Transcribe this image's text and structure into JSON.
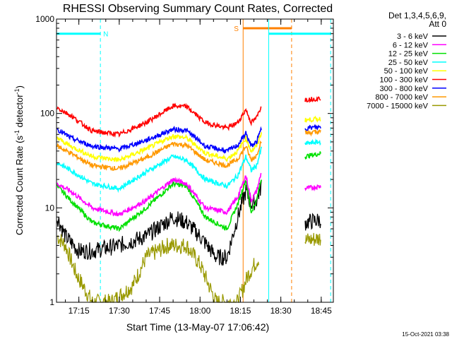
{
  "chart_data": {
    "type": "line",
    "title": "RHESSI Observing Summary Count Rates, Corrected",
    "ylabel_prefix": "Corrected Count Rate (s",
    "ylabel_sup": "-1",
    "ylabel_mid": " detector",
    "ylabel_sup2": "-1",
    "ylabel_suffix": ")",
    "xlabel": "Start Time (13-May-07 17:06:42)",
    "footer": "15-Oct-2021 03:38",
    "y_scale": "log",
    "ylim": [
      1,
      1000
    ],
    "xlim": [
      "17:06:42",
      "18:49:30"
    ],
    "y_ticks": [
      "1",
      "10",
      "100",
      "1000"
    ],
    "x_ticks": [
      "17:15",
      "17:30",
      "17:45",
      "18:00",
      "18:15",
      "18:30",
      "18:45"
    ],
    "legend": {
      "header1": "Det 1,3,4,5,6,9,",
      "header2": "Att 0",
      "placement": "right"
    },
    "series": [
      {
        "name": "3 - 6 keV",
        "color": "#000000",
        "points": [
          [
            "17:07",
            8
          ],
          [
            "17:10",
            5
          ],
          [
            "17:15",
            3.5
          ],
          [
            "17:20",
            3.5
          ],
          [
            "17:30",
            4
          ],
          [
            "17:40",
            5
          ],
          [
            "17:50",
            8
          ],
          [
            "17:55",
            7
          ],
          [
            "18:00",
            5
          ],
          [
            "18:06",
            3
          ],
          [
            "18:10",
            3
          ],
          [
            "18:14",
            8
          ],
          [
            "18:17",
            15
          ],
          [
            "18:19",
            11
          ],
          [
            "18:21",
            12
          ],
          [
            "18:23",
            18
          ]
        ],
        "points2": [
          [
            "18:39",
            7
          ],
          [
            "18:45",
            7.5
          ]
        ]
      },
      {
        "name": "6 - 12 keV",
        "color": "#ff00ff",
        "points": [
          [
            "17:07",
            18
          ],
          [
            "17:12",
            15
          ],
          [
            "17:20",
            10
          ],
          [
            "17:30",
            8.5
          ],
          [
            "17:40",
            12
          ],
          [
            "17:50",
            20
          ],
          [
            "17:55",
            18
          ],
          [
            "18:02",
            10
          ],
          [
            "18:10",
            9
          ],
          [
            "18:14",
            13
          ],
          [
            "18:17",
            22
          ],
          [
            "18:19",
            12
          ],
          [
            "18:21",
            15
          ],
          [
            "18:23",
            25
          ]
        ],
        "points2": [
          [
            "18:39",
            16
          ],
          [
            "18:45",
            17
          ]
        ]
      },
      {
        "name": "12 - 25 keV",
        "color": "#00e000",
        "points": [
          [
            "17:07",
            17
          ],
          [
            "17:12",
            12
          ],
          [
            "17:20",
            7
          ],
          [
            "17:30",
            6
          ],
          [
            "17:40",
            10
          ],
          [
            "17:50",
            18
          ],
          [
            "17:55",
            17
          ],
          [
            "18:02",
            8
          ],
          [
            "18:10",
            6
          ],
          [
            "18:14",
            11
          ],
          [
            "18:17",
            20
          ],
          [
            "18:19",
            9
          ],
          [
            "18:21",
            12
          ],
          [
            "18:23",
            22
          ]
        ],
        "points2": [
          [
            "18:39",
            35
          ],
          [
            "18:45",
            38
          ]
        ]
      },
      {
        "name": "25 - 50 keV",
        "color": "#00ffff",
        "points": [
          [
            "17:07",
            30
          ],
          [
            "17:12",
            25
          ],
          [
            "17:20",
            18
          ],
          [
            "17:30",
            16
          ],
          [
            "17:40",
            24
          ],
          [
            "17:50",
            35
          ],
          [
            "17:55",
            32
          ],
          [
            "18:02",
            20
          ],
          [
            "18:10",
            17
          ],
          [
            "18:14",
            22
          ],
          [
            "18:17",
            35
          ],
          [
            "18:19",
            25
          ],
          [
            "18:21",
            28
          ],
          [
            "18:23",
            45
          ]
        ],
        "points2": [
          [
            "18:39",
            48
          ],
          [
            "18:45",
            50
          ]
        ]
      },
      {
        "name": "50 - 100 keV",
        "color": "#ffff00",
        "points": [
          [
            "17:07",
            55
          ],
          [
            "17:12",
            45
          ],
          [
            "17:20",
            35
          ],
          [
            "17:30",
            32
          ],
          [
            "17:40",
            42
          ],
          [
            "17:50",
            58
          ],
          [
            "17:55",
            55
          ],
          [
            "18:02",
            38
          ],
          [
            "18:10",
            33
          ],
          [
            "18:14",
            40
          ],
          [
            "18:17",
            55
          ],
          [
            "18:19",
            40
          ],
          [
            "18:21",
            45
          ],
          [
            "18:23",
            65
          ]
        ],
        "points2": [
          [
            "18:39",
            85
          ],
          [
            "18:45",
            88
          ]
        ]
      },
      {
        "name": "100 - 300 keV",
        "color": "#ff0000",
        "points": [
          [
            "17:07",
            115
          ],
          [
            "17:12",
            95
          ],
          [
            "17:20",
            65
          ],
          [
            "17:30",
            60
          ],
          [
            "17:40",
            80
          ],
          [
            "17:50",
            120
          ],
          [
            "17:55",
            118
          ],
          [
            "18:02",
            80
          ],
          [
            "18:10",
            70
          ],
          [
            "18:14",
            80
          ],
          [
            "18:17",
            110
          ],
          [
            "18:19",
            80
          ],
          [
            "18:21",
            90
          ],
          [
            "18:23",
            125
          ]
        ],
        "points2": [
          [
            "18:39",
            140
          ],
          [
            "18:45",
            145
          ]
        ]
      },
      {
        "name": "300 - 800 keV",
        "color": "#0000ff",
        "points": [
          [
            "17:07",
            68
          ],
          [
            "17:12",
            55
          ],
          [
            "17:20",
            45
          ],
          [
            "17:30",
            42
          ],
          [
            "17:40",
            52
          ],
          [
            "17:50",
            68
          ],
          [
            "17:55",
            66
          ],
          [
            "18:02",
            45
          ],
          [
            "18:10",
            40
          ],
          [
            "18:14",
            46
          ],
          [
            "18:17",
            62
          ],
          [
            "18:19",
            45
          ],
          [
            "18:21",
            50
          ],
          [
            "18:23",
            72
          ]
        ],
        "points2": [
          [
            "18:39",
            70
          ],
          [
            "18:45",
            72
          ]
        ]
      },
      {
        "name": "800 - 7000 keV",
        "color": "#ff9900",
        "points": [
          [
            "17:07",
            45
          ],
          [
            "17:12",
            38
          ],
          [
            "17:20",
            28
          ],
          [
            "17:30",
            26
          ],
          [
            "17:40",
            34
          ],
          [
            "17:50",
            48
          ],
          [
            "17:55",
            46
          ],
          [
            "18:02",
            32
          ],
          [
            "18:10",
            28
          ],
          [
            "18:14",
            33
          ],
          [
            "18:17",
            45
          ],
          [
            "18:19",
            32
          ],
          [
            "18:21",
            36
          ],
          [
            "18:23",
            55
          ]
        ],
        "points2": [
          [
            "18:39",
            62
          ],
          [
            "18:45",
            64
          ]
        ]
      },
      {
        "name": "7000 - 15000 keV",
        "color": "#999900",
        "points": [
          [
            "17:07",
            5
          ],
          [
            "17:10",
            4
          ],
          [
            "17:14",
            2
          ],
          [
            "17:20",
            1
          ],
          [
            "17:27",
            1
          ],
          [
            "17:35",
            1.5
          ],
          [
            "17:40",
            3
          ],
          [
            "17:48",
            4
          ],
          [
            "17:55",
            4
          ],
          [
            "18:00",
            2.5
          ],
          [
            "18:06",
            1
          ],
          [
            "18:14",
            1
          ],
          [
            "18:18",
            2
          ],
          [
            "18:22",
            3
          ]
        ],
        "points2": [
          [
            "18:39",
            4.5
          ],
          [
            "18:45",
            4.8
          ]
        ]
      }
    ],
    "markers": [
      {
        "label": "N",
        "color": "#00ffff",
        "bar_start": "17:06:42",
        "bar_end": "17:23:00",
        "bar_y": 700,
        "lines_solid": [
          "17:06:42"
        ],
        "lines_dashed": [
          "17:23:00"
        ]
      },
      {
        "label": "S",
        "color": "#ff8000",
        "bar_start": "18:16:00",
        "bar_end": "18:34:00",
        "bar_y": 800,
        "lines_solid": [
          "18:16:00"
        ],
        "lines_dashed": [
          "18:34:00"
        ]
      },
      {
        "label": "",
        "color": "#00ffff",
        "bar_start": "18:25:30",
        "bar_end": "18:48:30",
        "bar_y": 700,
        "lines_solid": [
          "18:25:30"
        ],
        "lines_dashed": [
          "18:48:30"
        ]
      }
    ]
  }
}
